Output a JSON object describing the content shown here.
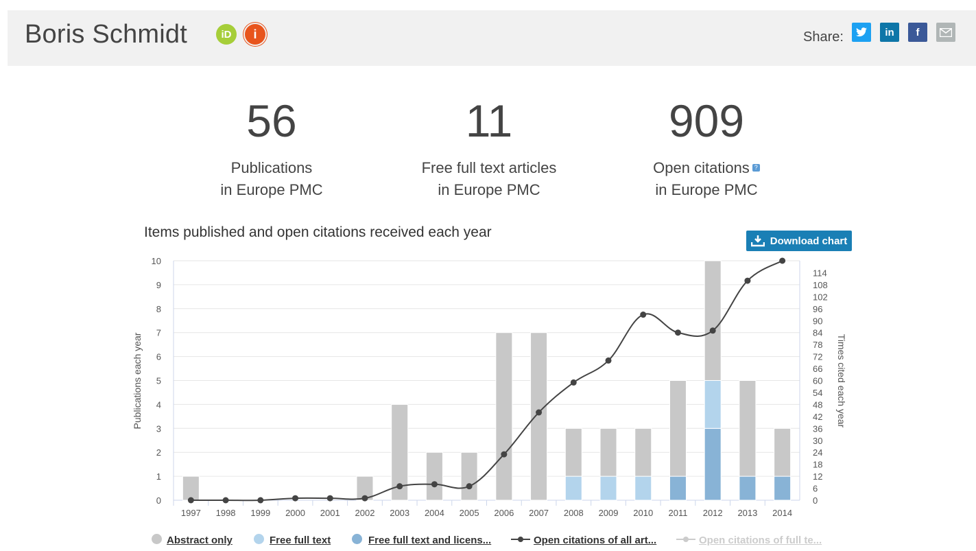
{
  "header": {
    "author_name": "Boris Schmidt",
    "orcid_icon": "orcid-icon",
    "info_icon": "info-icon",
    "share_label": "Share:",
    "share_buttons": [
      {
        "name": "twitter-icon",
        "glyph": "🐦",
        "color": "#1da1f2"
      },
      {
        "name": "linkedin-icon",
        "glyph": "in",
        "color": "#0e76a8"
      },
      {
        "name": "facebook-icon",
        "glyph": "f",
        "color": "#3b5998"
      },
      {
        "name": "email-icon",
        "glyph": "✉",
        "color": "#b0b6b6"
      }
    ]
  },
  "stats": [
    {
      "number": "56",
      "label_line1": "Publications",
      "label_line2": "in Europe PMC"
    },
    {
      "number": "11",
      "label_line1": "Free full text articles",
      "label_line2": "in Europe PMC"
    },
    {
      "number": "909",
      "label_line1": "Open citations",
      "label_line2": "in Europe PMC"
    }
  ],
  "download_label": "Download chart",
  "chart_data": {
    "type": "bar",
    "title": "Items published and open citations received each year",
    "ylabel": "Publications each year",
    "y2label": "Times cited each year",
    "ylim": [
      0,
      10
    ],
    "y2lim": [
      0,
      120
    ],
    "yticks": [
      0,
      1,
      2,
      3,
      4,
      5,
      6,
      7,
      8,
      9,
      10
    ],
    "y2ticks": [
      0,
      6,
      12,
      18,
      24,
      30,
      36,
      42,
      48,
      54,
      60,
      66,
      72,
      78,
      84,
      90,
      96,
      102,
      108,
      114
    ],
    "categories": [
      "1997",
      "1998",
      "1999",
      "2000",
      "2001",
      "2002",
      "2003",
      "2004",
      "2005",
      "2006",
      "2007",
      "2008",
      "2009",
      "2010",
      "2011",
      "2012",
      "2013",
      "2014"
    ],
    "series": [
      {
        "name": "Abstract only",
        "color": "#c8c8c8",
        "values": [
          1,
          0,
          0,
          0,
          0,
          1,
          4,
          2,
          2,
          7,
          7,
          2,
          2,
          2,
          4,
          5,
          4,
          2
        ]
      },
      {
        "name": "Free full text",
        "color": "#b3d4ec",
        "values": [
          0,
          0,
          0,
          0,
          0,
          0,
          0,
          0,
          0,
          0,
          0,
          1,
          1,
          1,
          0,
          2,
          0,
          0
        ]
      },
      {
        "name": "Free full text and licens...",
        "color": "#88b3d6",
        "values": [
          0,
          0,
          0,
          0,
          0,
          0,
          0,
          0,
          0,
          0,
          0,
          0,
          0,
          0,
          1,
          3,
          1,
          1
        ]
      }
    ],
    "line_series": [
      {
        "name": "Open citations of all art...",
        "color": "#444444",
        "values": [
          0,
          0,
          0,
          1,
          1,
          1,
          7,
          8,
          7,
          23,
          44,
          59,
          70,
          93,
          84,
          85,
          110,
          120
        ]
      },
      {
        "name": "Open citations of full te...",
        "color": "#cccccc",
        "disabled": true
      }
    ],
    "grid": true,
    "legend_position": "bottom"
  }
}
